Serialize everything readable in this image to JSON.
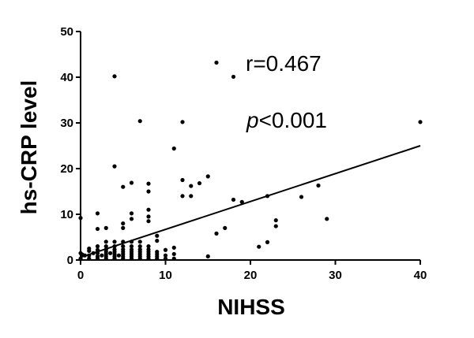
{
  "chart_data": {
    "type": "scatter",
    "title": "",
    "xlabel": "NIHSS",
    "ylabel": "hs-CRP level",
    "xlim": [
      0,
      40
    ],
    "ylim": [
      0,
      50
    ],
    "x_ticks": [
      "0",
      "10",
      "20",
      "30",
      "40"
    ],
    "y_ticks": [
      "0",
      "10",
      "20",
      "30",
      "40",
      "50"
    ],
    "grid": false,
    "legend": "none",
    "annotations": {
      "r": "r=0.467",
      "p_symbol": "p",
      "p_rest": "<0.001"
    },
    "colors": {
      "points": "#000000",
      "line": "#000000",
      "axes": "#000000"
    },
    "series": [
      {
        "x": [
          0,
          0,
          0,
          0.2,
          0.5,
          1,
          1,
          1,
          1,
          1.5,
          2,
          2,
          2,
          2,
          2,
          2,
          2,
          2.5,
          3,
          3,
          3,
          3,
          3,
          3,
          3,
          3,
          3.5,
          4,
          4,
          4,
          4,
          4,
          4,
          4,
          4,
          4,
          4.5,
          5,
          5,
          5,
          5,
          5,
          5,
          5,
          5,
          5,
          5,
          6,
          6,
          6,
          6,
          6,
          6,
          6,
          6,
          6,
          6,
          7,
          7,
          7,
          7,
          7,
          7,
          7,
          7,
          8,
          8,
          8,
          8,
          8,
          8,
          8,
          8,
          8,
          8,
          8,
          9,
          9,
          9,
          9,
          9,
          9,
          10,
          10,
          10,
          11,
          11,
          11,
          11,
          12,
          12,
          12,
          13,
          13,
          14,
          15,
          15,
          16,
          16,
          17,
          18,
          18,
          19,
          21,
          22,
          22,
          23,
          23,
          26,
          28,
          29,
          40
        ],
        "y": [
          0.3,
          1.5,
          9.2,
          1.2,
          1.0,
          0.3,
          1.0,
          2.0,
          2.5,
          1.5,
          0.3,
          0.8,
          1.5,
          2.2,
          3.0,
          6.8,
          10.2,
          1.0,
          0.3,
          0.8,
          1.3,
          1.8,
          2.3,
          3.0,
          4.0,
          7.0,
          1.5,
          0.3,
          0.8,
          1.3,
          1.8,
          2.3,
          3.0,
          4.0,
          20.5,
          40.2,
          1.0,
          0.3,
          0.8,
          1.3,
          1.8,
          2.3,
          3.0,
          4.0,
          7.0,
          8.0,
          16.0,
          0.3,
          0.8,
          1.3,
          1.8,
          2.3,
          3.0,
          4.0,
          9.0,
          10.2,
          16.9,
          0.3,
          0.8,
          1.3,
          1.8,
          2.3,
          3.0,
          4.0,
          30.4,
          0.3,
          0.8,
          1.3,
          1.8,
          2.3,
          3.0,
          8.5,
          9.5,
          11.0,
          15.0,
          16.7,
          0.3,
          0.8,
          1.3,
          1.8,
          4.2,
          5.3,
          0.3,
          1.0,
          2.2,
          0.3,
          1.3,
          2.7,
          24.4,
          14.0,
          17.5,
          30.2,
          14.0,
          16.2,
          16.8,
          0.8,
          18.3,
          5.8,
          43.2,
          7.0,
          13.2,
          40.1,
          12.7,
          2.9,
          3.9,
          14.0,
          7.4,
          8.7,
          13.8,
          16.3,
          9.0,
          30.2
        ]
      }
    ],
    "regression_line": {
      "x": [
        0,
        40
      ],
      "y": [
        0.6,
        25.0
      ]
    }
  }
}
